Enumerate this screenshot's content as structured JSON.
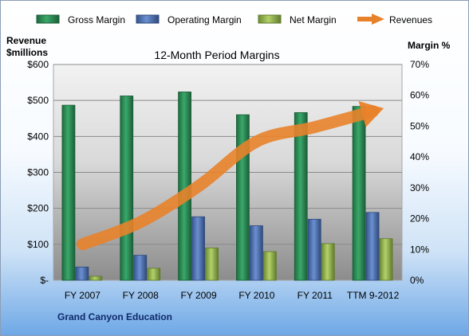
{
  "chart_data": {
    "type": "bar",
    "title": "12-Month Period Margins",
    "company": "Grand Canyon Education",
    "left_axis_label_line1": "Revenue",
    "left_axis_label_line2": "$millions",
    "right_axis_label": "Margin %",
    "categories": [
      "FY 2007",
      "FY 2008",
      "FY 2009",
      "FY 2010",
      "FY 2011",
      "TTM 9-2012"
    ],
    "left_ticks": [
      "$-",
      "$100",
      "$200",
      "$300",
      "$400",
      "$500",
      "$600"
    ],
    "right_ticks": [
      "0%",
      "10%",
      "20%",
      "30%",
      "40%",
      "50%",
      "60%",
      "70%"
    ],
    "ylim_left": [
      0,
      600
    ],
    "ylim_right": [
      0,
      70
    ],
    "grid": true,
    "legend_position": "top",
    "series": [
      {
        "name": "Gross Margin",
        "axis": "right",
        "kind": "bar",
        "color": "#2e8b57",
        "values": [
          56.8,
          59.8,
          61.1,
          53.7,
          54.4,
          56.4
        ]
      },
      {
        "name": "Operating Margin",
        "axis": "right",
        "kind": "bar",
        "color": "#4a6fb0",
        "values": [
          4.3,
          8.1,
          20.6,
          17.7,
          19.8,
          22.0
        ]
      },
      {
        "name": "Net Margin",
        "axis": "right",
        "kind": "bar",
        "color": "#8fb14a",
        "values": [
          1.3,
          3.9,
          10.5,
          9.3,
          11.9,
          13.5
        ]
      },
      {
        "name": "Revenues",
        "axis": "left",
        "kind": "arrow",
        "color": "#e8822a",
        "values": [
          100,
          162,
          262,
          386,
          426,
          470
        ]
      }
    ]
  }
}
